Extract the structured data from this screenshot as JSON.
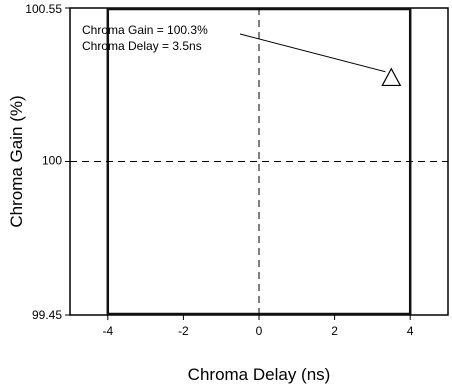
{
  "chart_data": {
    "type": "scatter",
    "title": "",
    "xlabel": "Chroma Delay (ns)",
    "ylabel": "Chroma Gain (%)",
    "xlim": [
      -5,
      5
    ],
    "ylim": [
      99.45,
      100.55
    ],
    "x_ticks": [
      -4,
      -2,
      0,
      2,
      4
    ],
    "x_tick_labels": [
      "-4",
      "-2",
      "0",
      "2",
      "4"
    ],
    "y_ticks": [
      99.45,
      100,
      100.55
    ],
    "y_tick_labels": [
      "99.45",
      "100",
      "100.55"
    ],
    "grid": false,
    "crosshair": {
      "x": 0,
      "y": 100
    },
    "limit_box": {
      "x": [
        -4,
        4
      ],
      "y": [
        99.45,
        100.55
      ]
    },
    "points": [
      {
        "x": 3.5,
        "y": 100.3,
        "marker": "triangle"
      }
    ],
    "annotation": {
      "lines": [
        "Chroma Gain = 100.3%",
        "Chroma Delay = 3.5ns"
      ],
      "points_to": {
        "x": 3.5,
        "y": 100.3
      }
    },
    "colors": {
      "frame": "#000000",
      "limit_box": "#111111",
      "crosshair": "#000000",
      "marker": "#000000",
      "background": "#ffffff"
    }
  }
}
